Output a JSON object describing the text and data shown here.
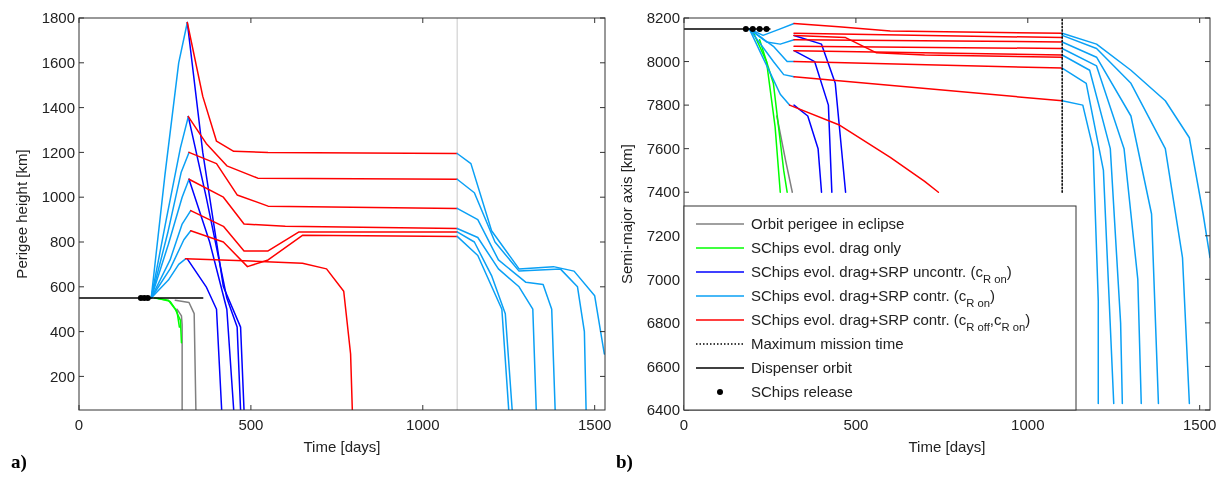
{
  "chart_data": [
    {
      "type": "line",
      "xlabel": "Time [days]",
      "ylabel": "Perigee height [km]",
      "xlim": [
        0,
        1530
      ],
      "ylim": [
        50,
        1800
      ],
      "xticks": [
        0,
        500,
        1000,
        1500
      ],
      "yticks": [
        200,
        400,
        600,
        800,
        1000,
        1200,
        1400,
        1600,
        1800
      ],
      "grid": false,
      "legend": false,
      "line_style": "solid",
      "annotations": [
        "a)"
      ],
      "ref_lines": [
        {
          "axis": "x",
          "value": 1100,
          "color": "#c8c8c8"
        }
      ],
      "series": [
        {
          "color": "#808080",
          "x": [
            280,
            320,
            335,
            340
          ],
          "values": [
            540,
            530,
            480,
            50
          ]
        },
        {
          "color": "#808080",
          "x": [
            285,
            298,
            300,
            300
          ],
          "values": [
            500,
            470,
            430,
            50
          ]
        },
        {
          "color": "#00ff00",
          "x": [
            220,
            260,
            280,
            295,
            298
          ],
          "values": [
            550,
            540,
            500,
            450,
            350
          ]
        },
        {
          "color": "#00ff00",
          "x": [
            230,
            265,
            285,
            292
          ],
          "values": [
            548,
            535,
            490,
            420
          ]
        },
        {
          "color": "#0000ff",
          "x": [
            315,
            360,
            420,
            470,
            480
          ],
          "values": [
            1780,
            1200,
            600,
            420,
            50
          ]
        },
        {
          "color": "#0000ff",
          "x": [
            318,
            370,
            430,
            460,
            470
          ],
          "values": [
            1360,
            1000,
            550,
            420,
            50
          ]
        },
        {
          "color": "#0000ff",
          "x": [
            320,
            380,
            430,
            450
          ],
          "values": [
            1080,
            800,
            500,
            50
          ]
        },
        {
          "color": "#0000ff",
          "x": [
            315,
            370,
            400,
            415
          ],
          "values": [
            725,
            600,
            500,
            50
          ]
        },
        {
          "color": "#0aa0f5",
          "x": [
            210,
            250,
            290,
            315
          ],
          "values": [
            550,
            1100,
            1600,
            1780
          ]
        },
        {
          "color": "#0aa0f5",
          "x": [
            210,
            255,
            295,
            318
          ],
          "values": [
            550,
            910,
            1220,
            1360
          ]
        },
        {
          "color": "#0aa0f5",
          "x": [
            210,
            258,
            297,
            320
          ],
          "values": [
            550,
            840,
            1110,
            1200
          ]
        },
        {
          "color": "#0aa0f5",
          "x": [
            210,
            260,
            300,
            320
          ],
          "values": [
            550,
            790,
            1000,
            1080
          ]
        },
        {
          "color": "#0aa0f5",
          "x": [
            210,
            265,
            300,
            325
          ],
          "values": [
            550,
            720,
            880,
            940
          ]
        },
        {
          "color": "#0aa0f5",
          "x": [
            210,
            265,
            305,
            325
          ],
          "values": [
            550,
            680,
            810,
            850
          ]
        },
        {
          "color": "#0aa0f5",
          "x": [
            210,
            260,
            290,
            310
          ],
          "values": [
            550,
            630,
            700,
            725
          ]
        },
        {
          "color": "#ff0000",
          "x": [
            315,
            360,
            400,
            450,
            550,
            1100
          ],
          "values": [
            1780,
            1450,
            1250,
            1205,
            1200,
            1195
          ]
        },
        {
          "color": "#ff0000",
          "x": [
            318,
            370,
            430,
            520,
            1100
          ],
          "values": [
            1360,
            1240,
            1140,
            1085,
            1080
          ]
        },
        {
          "color": "#ff0000",
          "x": [
            320,
            400,
            460,
            550,
            1100
          ],
          "values": [
            1200,
            1150,
            1010,
            960,
            950
          ]
        },
        {
          "color": "#ff0000",
          "x": [
            320,
            420,
            480,
            600,
            1100
          ],
          "values": [
            1080,
            1000,
            880,
            870,
            860
          ]
        },
        {
          "color": "#ff0000",
          "x": [
            325,
            420,
            480,
            550,
            640,
            1100
          ],
          "values": [
            940,
            870,
            760,
            760,
            845,
            845
          ]
        },
        {
          "color": "#ff0000",
          "x": [
            325,
            420,
            490,
            550,
            650,
            1100
          ],
          "values": [
            850,
            800,
            690,
            720,
            830,
            825
          ]
        },
        {
          "color": "#ff0000",
          "x": [
            310,
            500,
            650,
            720,
            770,
            790,
            795
          ],
          "values": [
            725,
            715,
            705,
            680,
            580,
            300,
            50
          ]
        },
        {
          "color": "#0aa0f5",
          "x": [
            1100,
            1140,
            1200,
            1280,
            1380,
            1440,
            1500,
            1528
          ],
          "values": [
            1195,
            1150,
            850,
            680,
            690,
            670,
            560,
            300
          ]
        },
        {
          "color": "#0aa0f5",
          "x": [
            1100,
            1150,
            1210,
            1280,
            1400,
            1450,
            1470,
            1475
          ],
          "values": [
            1080,
            1020,
            800,
            670,
            680,
            600,
            400,
            50
          ]
        },
        {
          "color": "#0aa0f5",
          "x": [
            1100,
            1160,
            1220,
            1300,
            1350,
            1375,
            1385
          ],
          "values": [
            950,
            900,
            720,
            620,
            610,
            500,
            50
          ]
        },
        {
          "color": "#0aa0f5",
          "x": [
            1100,
            1160,
            1220,
            1280,
            1320,
            1330
          ],
          "values": [
            860,
            820,
            680,
            600,
            500,
            50
          ]
        },
        {
          "color": "#0aa0f5",
          "x": [
            1100,
            1150,
            1200,
            1240,
            1260
          ],
          "values": [
            845,
            800,
            650,
            480,
            50
          ]
        },
        {
          "color": "#0aa0f5",
          "x": [
            1100,
            1160,
            1230,
            1250
          ],
          "values": [
            825,
            740,
            500,
            50
          ]
        },
        {
          "color": "#000000",
          "x": [
            0,
            360
          ],
          "values": [
            550,
            550
          ]
        },
        {
          "type": "scatter",
          "marker": "circle",
          "color": "#000000",
          "x": [
            180,
            190,
            200
          ],
          "values": [
            550,
            550,
            550
          ]
        }
      ]
    },
    {
      "type": "line",
      "xlabel": "Time [days]",
      "ylabel": "Semi-major axis [km]",
      "xlim": [
        0,
        1530
      ],
      "ylim": [
        6400,
        8200
      ],
      "xticks": [
        0,
        500,
        1000,
        1500
      ],
      "yticks": [
        6400,
        6600,
        6800,
        7000,
        7200,
        7400,
        7600,
        7800,
        8000,
        8200
      ],
      "grid": false,
      "legend": "bottom left",
      "line_style": "solid",
      "annotations": [
        "b)"
      ],
      "series": [
        {
          "name": "Orbit perigee in eclipse",
          "color": "#808080",
          "x": [
            270,
            295,
            315
          ],
          "values": [
            7750,
            7550,
            7400
          ]
        },
        {
          "name": "SChips evol. drag only",
          "color": "#00ff00",
          "x": [
            200,
            240,
            265,
            280
          ],
          "values": [
            8140,
            8000,
            7700,
            7400
          ]
        },
        {
          "color": "#00ff00",
          "x": [
            220,
            260,
            290,
            300
          ],
          "values": [
            8100,
            7900,
            7500,
            7400
          ]
        },
        {
          "name": "SChips evol. drag+SRP uncontr. (c$_{R on}$)",
          "color": "#0000ff",
          "x": [
            320,
            400,
            440,
            470
          ],
          "values": [
            8120,
            8080,
            7900,
            7400
          ]
        },
        {
          "color": "#0000ff",
          "x": [
            320,
            380,
            420,
            430
          ],
          "values": [
            8050,
            8000,
            7800,
            7400
          ]
        },
        {
          "color": "#0000ff",
          "x": [
            320,
            360,
            390,
            400
          ],
          "values": [
            7800,
            7750,
            7600,
            7400
          ]
        },
        {
          "name": "SChips evol. drag+SRP contr. (c$_{R on}$)",
          "color": "#0aa0f5",
          "x": [
            190,
            230,
            280,
            320
          ],
          "values": [
            8150,
            8120,
            8150,
            8175
          ]
        },
        {
          "color": "#0aa0f5",
          "x": [
            190,
            240,
            280,
            320
          ],
          "values": [
            8150,
            8090,
            8080,
            8100
          ]
        },
        {
          "color": "#0aa0f5",
          "x": [
            190,
            260,
            300,
            320
          ],
          "values": [
            8150,
            8070,
            8000,
            8000
          ]
        },
        {
          "color": "#0aa0f5",
          "x": [
            190,
            260,
            290,
            320
          ],
          "values": [
            8150,
            8000,
            7940,
            7930
          ]
        },
        {
          "color": "#0aa0f5",
          "x": [
            190,
            250,
            280,
            307
          ],
          "values": [
            8150,
            7950,
            7850,
            7800
          ]
        },
        {
          "name": "SChips evol. drag+SRP contr. (c$_{R off}$,c$_{R on}$)",
          "color": "#ff0000",
          "x": [
            320,
            450,
            600,
            1100
          ],
          "values": [
            8175,
            8160,
            8140,
            8130
          ]
        },
        {
          "color": "#ff0000",
          "x": [
            320,
            1100
          ],
          "values": [
            8130,
            8110
          ]
        },
        {
          "color": "#ff0000",
          "x": [
            320,
            1100
          ],
          "values": [
            8100,
            8090
          ]
        },
        {
          "color": "#ff0000",
          "x": [
            320,
            1100
          ],
          "values": [
            8070,
            8060
          ]
        },
        {
          "color": "#ff0000",
          "x": [
            320,
            1100
          ],
          "values": [
            8050,
            8030
          ]
        },
        {
          "color": "#ff0000",
          "x": [
            320,
            470,
            560,
            700,
            1100
          ],
          "values": [
            8120,
            8110,
            8040,
            8030,
            8020
          ]
        },
        {
          "color": "#ff0000",
          "x": [
            320,
            1100
          ],
          "values": [
            8000,
            7970
          ]
        },
        {
          "color": "#ff0000",
          "x": [
            320,
            1100
          ],
          "values": [
            7930,
            7820
          ]
        },
        {
          "color": "#ff0000",
          "x": [
            307,
            450,
            600,
            700,
            740
          ],
          "values": [
            7800,
            7710,
            7560,
            7450,
            7400
          ]
        },
        {
          "color": "#0aa0f5",
          "x": [
            1100,
            1200,
            1300,
            1400,
            1470,
            1510,
            1530
          ],
          "values": [
            8130,
            8080,
            7960,
            7820,
            7650,
            7300,
            7100
          ]
        },
        {
          "color": "#0aa0f5",
          "x": [
            1100,
            1200,
            1300,
            1400,
            1450,
            1470
          ],
          "values": [
            8120,
            8060,
            7900,
            7600,
            7100,
            6430
          ]
        },
        {
          "color": "#0aa0f5",
          "x": [
            1100,
            1200,
            1300,
            1360,
            1380
          ],
          "values": [
            8090,
            8020,
            7750,
            7300,
            6430
          ]
        },
        {
          "color": "#0aa0f5",
          "x": [
            1100,
            1200,
            1280,
            1320,
            1330
          ],
          "values": [
            8060,
            7980,
            7600,
            7000,
            6430
          ]
        },
        {
          "color": "#0aa0f5",
          "x": [
            1100,
            1180,
            1240,
            1270,
            1275
          ],
          "values": [
            8030,
            7960,
            7600,
            6800,
            6430
          ]
        },
        {
          "color": "#0aa0f5",
          "x": [
            1100,
            1170,
            1220,
            1250
          ],
          "values": [
            7970,
            7900,
            7500,
            6430
          ]
        },
        {
          "color": "#0aa0f5",
          "x": [
            1100,
            1160,
            1190,
            1205,
            1205
          ],
          "values": [
            7820,
            7800,
            7600,
            6900,
            6430
          ]
        },
        {
          "name": "Maximum mission time",
          "color": "#000000",
          "line_style": "dotted",
          "x": [
            1100,
            1100
          ],
          "values": [
            7400,
            8200
          ]
        },
        {
          "name": "Dispenser orbit",
          "color": "#000000",
          "x": [
            0,
            250
          ],
          "values": [
            8150,
            8150
          ]
        },
        {
          "name": "SChips release",
          "type": "scatter",
          "marker": "circle",
          "color": "#000000",
          "x": [
            180,
            200,
            220,
            240
          ],
          "values": [
            8150,
            8150,
            8150,
            8150
          ]
        }
      ]
    }
  ]
}
